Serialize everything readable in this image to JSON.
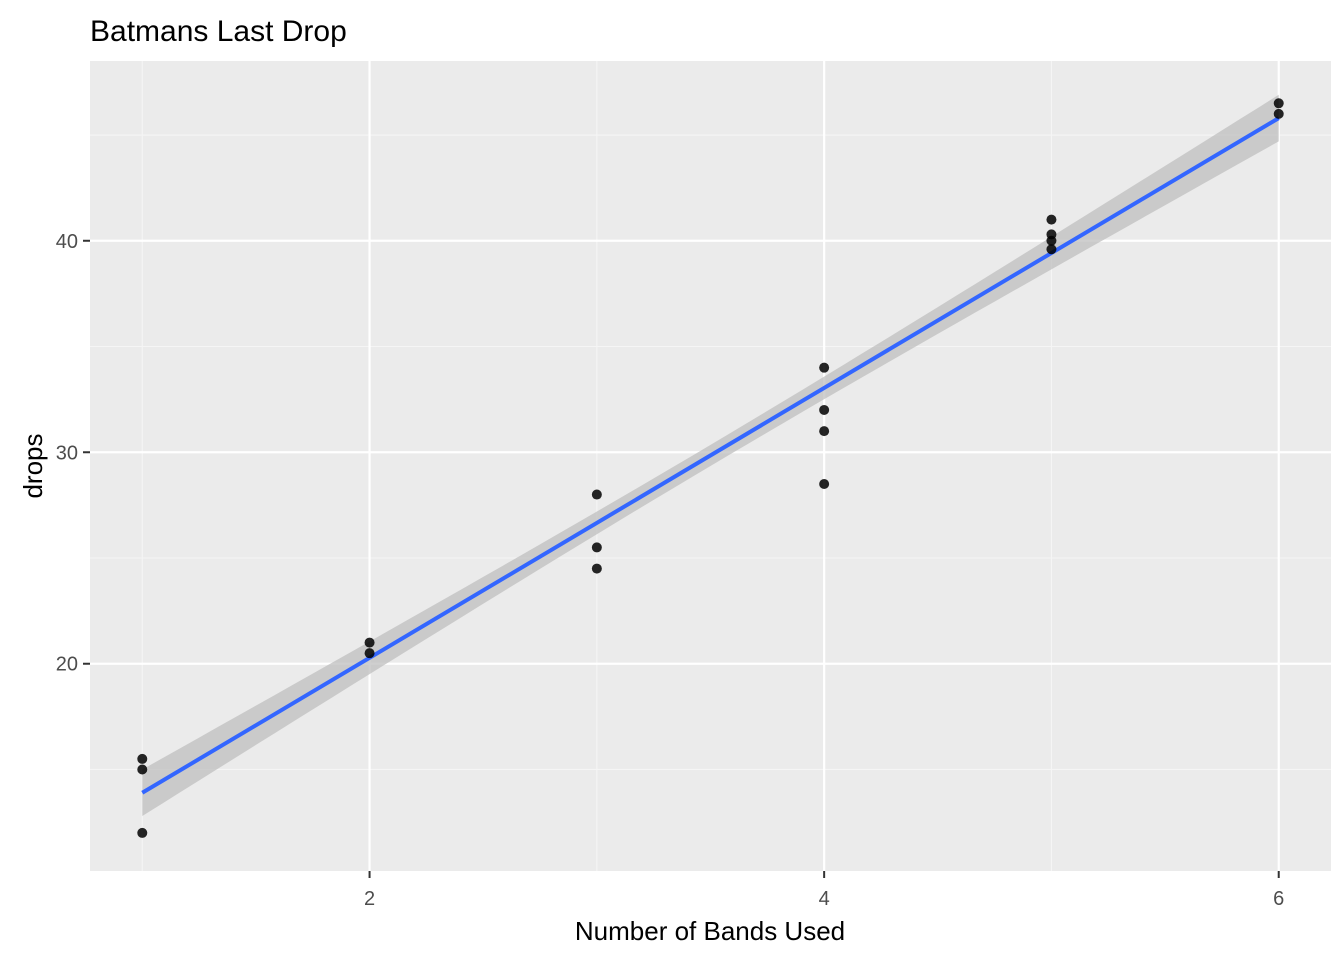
{
  "chart_data": {
    "type": "scatter",
    "title": "Batmans Last Drop",
    "xlabel": "Number of Bands Used",
    "ylabel": "drops",
    "xlim": [
      0.77,
      6.23
    ],
    "ylim": [
      10.2,
      48.5
    ],
    "x_ticks": [
      2,
      4,
      6
    ],
    "y_ticks": [
      20,
      30,
      40
    ],
    "x_tick_labels": [
      "2",
      "4",
      "6"
    ],
    "y_tick_labels": [
      "20",
      "30",
      "40"
    ],
    "grid": true,
    "legend": "none",
    "colors": {
      "panel_background": "#ebebeb",
      "grid_major": "#ffffff",
      "grid_minor": "#f5f5f5",
      "points": "#000000",
      "fit_line": "#3366ff",
      "confidence_band": "#bfbfbf"
    },
    "points": [
      {
        "x": 1,
        "y": 15.5
      },
      {
        "x": 1,
        "y": 15.0
      },
      {
        "x": 1,
        "y": 12.0
      },
      {
        "x": 2,
        "y": 21.0
      },
      {
        "x": 2,
        "y": 20.5
      },
      {
        "x": 3,
        "y": 28.0
      },
      {
        "x": 3,
        "y": 25.5
      },
      {
        "x": 3,
        "y": 24.5
      },
      {
        "x": 4,
        "y": 34.0
      },
      {
        "x": 4,
        "y": 32.0
      },
      {
        "x": 4,
        "y": 31.0
      },
      {
        "x": 4,
        "y": 28.5
      },
      {
        "x": 5,
        "y": 41.0
      },
      {
        "x": 5,
        "y": 40.3
      },
      {
        "x": 5,
        "y": 40.0
      },
      {
        "x": 5,
        "y": 39.6
      },
      {
        "x": 6,
        "y": 46.5
      },
      {
        "x": 6,
        "y": 46.0
      }
    ],
    "fit": {
      "method": "lm",
      "start": {
        "x": 1,
        "y": 13.9
      },
      "end": {
        "x": 6,
        "y": 45.8
      },
      "ci_halfwidth_at_ends": 1.1,
      "ci_halfwidth_at_center": 0.5
    }
  }
}
